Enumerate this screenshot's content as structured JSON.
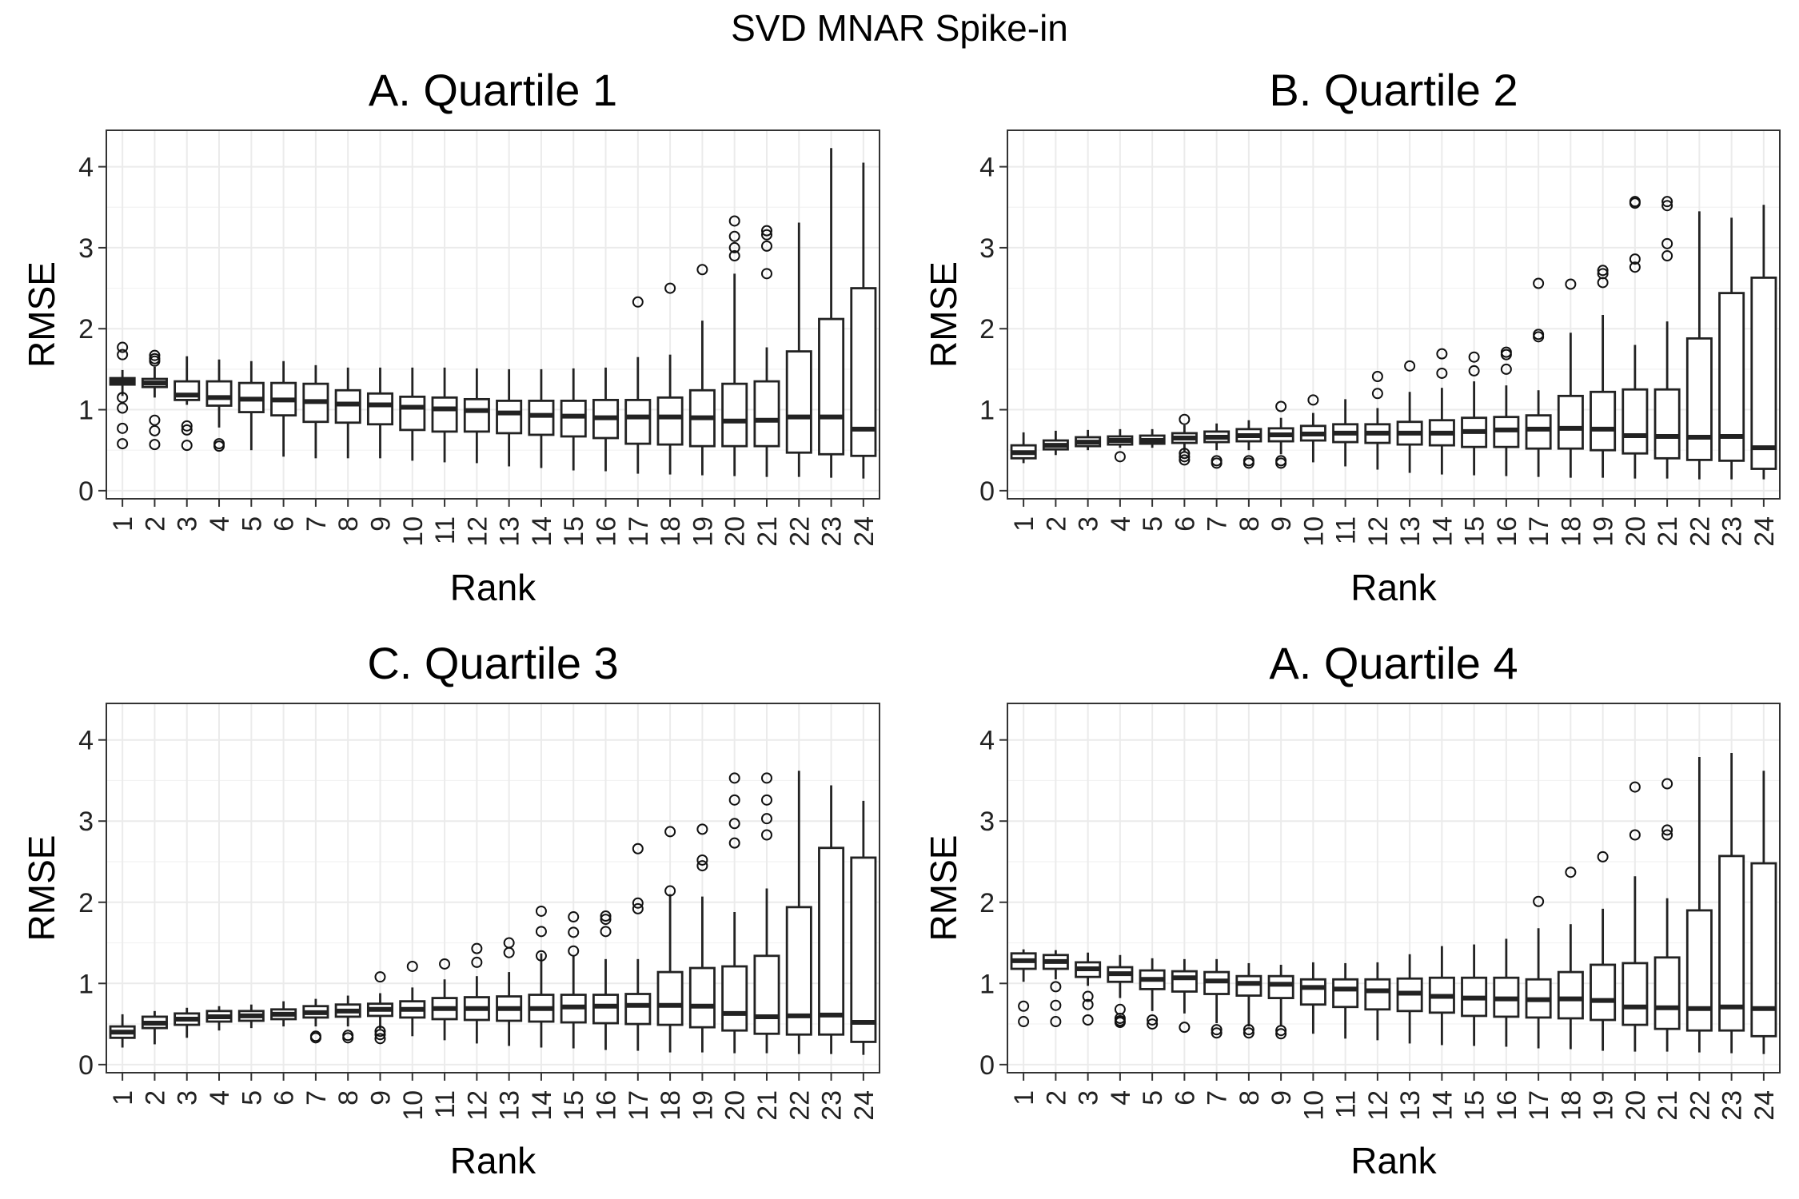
{
  "title": "SVD MNAR Spike-in",
  "chart_data": [
    {
      "type": "box",
      "title": "A. Quartile 1",
      "xlabel": "Rank",
      "ylabel": "RMSE",
      "ylim": [
        -0.1,
        4.45
      ],
      "yticks": [
        0,
        1,
        2,
        3,
        4
      ],
      "grid": true,
      "categories": [
        "1",
        "2",
        "3",
        "4",
        "5",
        "6",
        "7",
        "8",
        "9",
        "10",
        "11",
        "12",
        "13",
        "14",
        "15",
        "16",
        "17",
        "18",
        "19",
        "20",
        "21",
        "22",
        "23",
        "24"
      ],
      "boxes": [
        {
          "lo": 1.17,
          "q1": 1.31,
          "med": 1.35,
          "q3": 1.39,
          "hi": 1.49,
          "outliers": [
            1.77,
            1.68,
            1.15,
            1.02,
            0.77,
            0.58
          ]
        },
        {
          "lo": 1.15,
          "q1": 1.28,
          "med": 1.33,
          "q3": 1.38,
          "hi": 1.53,
          "outliers": [
            1.67,
            1.63,
            1.6,
            0.87,
            0.74,
            0.57
          ]
        },
        {
          "lo": 1.06,
          "q1": 1.12,
          "med": 1.18,
          "q3": 1.35,
          "hi": 1.66,
          "outliers": [
            0.8,
            0.75,
            0.56
          ]
        },
        {
          "lo": 0.78,
          "q1": 1.05,
          "med": 1.15,
          "q3": 1.35,
          "hi": 1.62,
          "outliers": [
            0.58,
            0.55
          ]
        },
        {
          "lo": 0.5,
          "q1": 0.97,
          "med": 1.13,
          "q3": 1.33,
          "hi": 1.6
        },
        {
          "lo": 0.42,
          "q1": 0.93,
          "med": 1.12,
          "q3": 1.33,
          "hi": 1.6
        },
        {
          "lo": 0.4,
          "q1": 0.85,
          "med": 1.1,
          "q3": 1.32,
          "hi": 1.55
        },
        {
          "lo": 0.4,
          "q1": 0.84,
          "med": 1.07,
          "q3": 1.24,
          "hi": 1.52
        },
        {
          "lo": 0.4,
          "q1": 0.82,
          "med": 1.06,
          "q3": 1.2,
          "hi": 1.52
        },
        {
          "lo": 0.37,
          "q1": 0.75,
          "med": 1.03,
          "q3": 1.16,
          "hi": 1.52
        },
        {
          "lo": 0.35,
          "q1": 0.73,
          "med": 1.01,
          "q3": 1.15,
          "hi": 1.52
        },
        {
          "lo": 0.34,
          "q1": 0.73,
          "med": 0.99,
          "q3": 1.13,
          "hi": 1.51
        },
        {
          "lo": 0.3,
          "q1": 0.71,
          "med": 0.96,
          "q3": 1.11,
          "hi": 1.5
        },
        {
          "lo": 0.28,
          "q1": 0.69,
          "med": 0.93,
          "q3": 1.11,
          "hi": 1.5
        },
        {
          "lo": 0.25,
          "q1": 0.67,
          "med": 0.92,
          "q3": 1.11,
          "hi": 1.51
        },
        {
          "lo": 0.24,
          "q1": 0.65,
          "med": 0.9,
          "q3": 1.12,
          "hi": 1.52
        },
        {
          "lo": 0.21,
          "q1": 0.58,
          "med": 0.91,
          "q3": 1.12,
          "hi": 1.65,
          "outliers": [
            2.33
          ]
        },
        {
          "lo": 0.2,
          "q1": 0.57,
          "med": 0.91,
          "q3": 1.15,
          "hi": 1.68,
          "outliers": [
            2.5
          ]
        },
        {
          "lo": 0.19,
          "q1": 0.55,
          "med": 0.9,
          "q3": 1.24,
          "hi": 2.1,
          "outliers": [
            2.73
          ]
        },
        {
          "lo": 0.18,
          "q1": 0.55,
          "med": 0.86,
          "q3": 1.32,
          "hi": 2.68,
          "outliers": [
            3.33,
            3.14,
            3.0,
            2.9
          ]
        },
        {
          "lo": 0.17,
          "q1": 0.55,
          "med": 0.87,
          "q3": 1.35,
          "hi": 1.77,
          "outliers": [
            3.21,
            3.16,
            3.02,
            2.68
          ]
        },
        {
          "lo": 0.17,
          "q1": 0.47,
          "med": 0.91,
          "q3": 1.72,
          "hi": 3.31
        },
        {
          "lo": 0.16,
          "q1": 0.45,
          "med": 0.91,
          "q3": 2.12,
          "hi": 4.23
        },
        {
          "lo": 0.15,
          "q1": 0.43,
          "med": 0.76,
          "q3": 2.5,
          "hi": 4.05
        }
      ]
    },
    {
      "type": "box",
      "title": "B. Quartile 2",
      "xlabel": "Rank",
      "ylabel": "RMSE",
      "ylim": [
        -0.1,
        4.45
      ],
      "yticks": [
        0,
        1,
        2,
        3,
        4
      ],
      "grid": true,
      "categories": [
        "1",
        "2",
        "3",
        "4",
        "5",
        "6",
        "7",
        "8",
        "9",
        "10",
        "11",
        "12",
        "13",
        "14",
        "15",
        "16",
        "17",
        "18",
        "19",
        "20",
        "21",
        "22",
        "23",
        "24"
      ],
      "boxes": [
        {
          "lo": 0.34,
          "q1": 0.4,
          "med": 0.47,
          "q3": 0.56,
          "hi": 0.72
        },
        {
          "lo": 0.44,
          "q1": 0.51,
          "med": 0.56,
          "q3": 0.62,
          "hi": 0.74
        },
        {
          "lo": 0.5,
          "q1": 0.55,
          "med": 0.6,
          "q3": 0.66,
          "hi": 0.75
        },
        {
          "lo": 0.53,
          "q1": 0.57,
          "med": 0.62,
          "q3": 0.67,
          "hi": 0.76,
          "outliers": [
            0.42
          ]
        },
        {
          "lo": 0.53,
          "q1": 0.58,
          "med": 0.62,
          "q3": 0.68,
          "hi": 0.76
        },
        {
          "lo": 0.48,
          "q1": 0.59,
          "med": 0.65,
          "q3": 0.71,
          "hi": 0.81,
          "outliers": [
            0.88,
            0.46,
            0.42,
            0.38
          ]
        },
        {
          "lo": 0.5,
          "q1": 0.6,
          "med": 0.66,
          "q3": 0.73,
          "hi": 0.83,
          "outliers": [
            0.37,
            0.34
          ]
        },
        {
          "lo": 0.5,
          "q1": 0.61,
          "med": 0.68,
          "q3": 0.76,
          "hi": 0.87,
          "outliers": [
            0.37,
            0.34
          ]
        },
        {
          "lo": 0.45,
          "q1": 0.61,
          "med": 0.69,
          "q3": 0.77,
          "hi": 0.9,
          "outliers": [
            1.04,
            0.37,
            0.34
          ]
        },
        {
          "lo": 0.35,
          "q1": 0.62,
          "med": 0.7,
          "q3": 0.8,
          "hi": 0.96,
          "outliers": [
            1.12
          ]
        },
        {
          "lo": 0.3,
          "q1": 0.6,
          "med": 0.71,
          "q3": 0.82,
          "hi": 1.13
        },
        {
          "lo": 0.26,
          "q1": 0.59,
          "med": 0.71,
          "q3": 0.82,
          "hi": 1.02,
          "outliers": [
            1.41,
            1.2
          ]
        },
        {
          "lo": 0.22,
          "q1": 0.57,
          "med": 0.71,
          "q3": 0.85,
          "hi": 1.22,
          "outliers": [
            1.54
          ]
        },
        {
          "lo": 0.2,
          "q1": 0.56,
          "med": 0.71,
          "q3": 0.87,
          "hi": 1.27,
          "outliers": [
            1.69,
            1.45
          ]
        },
        {
          "lo": 0.19,
          "q1": 0.54,
          "med": 0.73,
          "q3": 0.9,
          "hi": 1.35,
          "outliers": [
            1.65,
            1.48
          ]
        },
        {
          "lo": 0.18,
          "q1": 0.54,
          "med": 0.75,
          "q3": 0.91,
          "hi": 1.3,
          "outliers": [
            1.71,
            1.68,
            1.5
          ]
        },
        {
          "lo": 0.17,
          "q1": 0.52,
          "med": 0.76,
          "q3": 0.93,
          "hi": 1.24,
          "outliers": [
            2.56,
            1.93,
            1.9
          ]
        },
        {
          "lo": 0.16,
          "q1": 0.52,
          "med": 0.77,
          "q3": 1.17,
          "hi": 1.95,
          "outliers": [
            2.55
          ]
        },
        {
          "lo": 0.16,
          "q1": 0.5,
          "med": 0.76,
          "q3": 1.22,
          "hi": 2.17,
          "outliers": [
            2.72,
            2.68,
            2.57
          ]
        },
        {
          "lo": 0.15,
          "q1": 0.46,
          "med": 0.68,
          "q3": 1.25,
          "hi": 1.8,
          "outliers": [
            3.57,
            3.55,
            2.86,
            2.76
          ]
        },
        {
          "lo": 0.15,
          "q1": 0.4,
          "med": 0.67,
          "q3": 1.25,
          "hi": 2.09,
          "outliers": [
            3.57,
            3.52,
            3.05,
            2.9
          ]
        },
        {
          "lo": 0.14,
          "q1": 0.38,
          "med": 0.66,
          "q3": 1.88,
          "hi": 3.45
        },
        {
          "lo": 0.14,
          "q1": 0.37,
          "med": 0.67,
          "q3": 2.44,
          "hi": 3.37
        },
        {
          "lo": 0.14,
          "q1": 0.27,
          "med": 0.53,
          "q3": 2.63,
          "hi": 3.53
        }
      ]
    },
    {
      "type": "box",
      "title": "C. Quartile 3",
      "xlabel": "Rank",
      "ylabel": "RMSE",
      "ylim": [
        -0.1,
        4.45
      ],
      "yticks": [
        0,
        1,
        2,
        3,
        4
      ],
      "grid": true,
      "categories": [
        "1",
        "2",
        "3",
        "4",
        "5",
        "6",
        "7",
        "8",
        "9",
        "10",
        "11",
        "12",
        "13",
        "14",
        "15",
        "16",
        "17",
        "18",
        "19",
        "20",
        "21",
        "22",
        "23",
        "24"
      ],
      "boxes": [
        {
          "lo": 0.21,
          "q1": 0.33,
          "med": 0.4,
          "q3": 0.47,
          "hi": 0.62
        },
        {
          "lo": 0.25,
          "q1": 0.45,
          "med": 0.51,
          "q3": 0.59,
          "hi": 0.66
        },
        {
          "lo": 0.33,
          "q1": 0.49,
          "med": 0.56,
          "q3": 0.63,
          "hi": 0.7
        },
        {
          "lo": 0.42,
          "q1": 0.53,
          "med": 0.59,
          "q3": 0.66,
          "hi": 0.72
        },
        {
          "lo": 0.45,
          "q1": 0.54,
          "med": 0.6,
          "q3": 0.66,
          "hi": 0.74
        },
        {
          "lo": 0.47,
          "q1": 0.56,
          "med": 0.62,
          "q3": 0.68,
          "hi": 0.78
        },
        {
          "lo": 0.47,
          "q1": 0.58,
          "med": 0.64,
          "q3": 0.72,
          "hi": 0.81,
          "outliers": [
            0.35,
            0.33
          ]
        },
        {
          "lo": 0.47,
          "q1": 0.59,
          "med": 0.66,
          "q3": 0.74,
          "hi": 0.85,
          "outliers": [
            0.36,
            0.33
          ]
        },
        {
          "lo": 0.44,
          "q1": 0.6,
          "med": 0.68,
          "q3": 0.75,
          "hi": 0.88,
          "outliers": [
            1.08,
            0.41,
            0.37,
            0.32
          ]
        },
        {
          "lo": 0.35,
          "q1": 0.58,
          "med": 0.68,
          "q3": 0.78,
          "hi": 0.95,
          "outliers": [
            1.21
          ]
        },
        {
          "lo": 0.3,
          "q1": 0.56,
          "med": 0.69,
          "q3": 0.82,
          "hi": 1.05,
          "outliers": [
            1.24
          ]
        },
        {
          "lo": 0.26,
          "q1": 0.55,
          "med": 0.69,
          "q3": 0.83,
          "hi": 1.09,
          "outliers": [
            1.43,
            1.26
          ]
        },
        {
          "lo": 0.23,
          "q1": 0.54,
          "med": 0.69,
          "q3": 0.84,
          "hi": 1.14,
          "outliers": [
            1.5,
            1.38
          ]
        },
        {
          "lo": 0.21,
          "q1": 0.53,
          "med": 0.69,
          "q3": 0.86,
          "hi": 1.37,
          "outliers": [
            1.89,
            1.64,
            1.34
          ]
        },
        {
          "lo": 0.2,
          "q1": 0.52,
          "med": 0.71,
          "q3": 0.86,
          "hi": 1.34,
          "outliers": [
            1.82,
            1.63,
            1.4
          ]
        },
        {
          "lo": 0.18,
          "q1": 0.51,
          "med": 0.72,
          "q3": 0.86,
          "hi": 1.3,
          "outliers": [
            1.83,
            1.79,
            1.64
          ]
        },
        {
          "lo": 0.17,
          "q1": 0.5,
          "med": 0.73,
          "q3": 0.87,
          "hi": 1.3,
          "outliers": [
            2.66,
            1.99,
            1.92
          ]
        },
        {
          "lo": 0.15,
          "q1": 0.49,
          "med": 0.73,
          "q3": 1.14,
          "hi": 2.1,
          "outliers": [
            2.87,
            2.14
          ]
        },
        {
          "lo": 0.15,
          "q1": 0.46,
          "med": 0.72,
          "q3": 1.19,
          "hi": 2.07,
          "outliers": [
            2.9,
            2.52,
            2.45
          ]
        },
        {
          "lo": 0.14,
          "q1": 0.42,
          "med": 0.63,
          "q3": 1.21,
          "hi": 1.88,
          "outliers": [
            3.53,
            3.26,
            2.97,
            2.73
          ]
        },
        {
          "lo": 0.14,
          "q1": 0.38,
          "med": 0.59,
          "q3": 1.34,
          "hi": 2.17,
          "outliers": [
            3.53,
            3.26,
            3.03,
            2.83
          ]
        },
        {
          "lo": 0.13,
          "q1": 0.37,
          "med": 0.6,
          "q3": 1.94,
          "hi": 3.62
        },
        {
          "lo": 0.13,
          "q1": 0.37,
          "med": 0.61,
          "q3": 2.67,
          "hi": 3.44
        },
        {
          "lo": 0.12,
          "q1": 0.28,
          "med": 0.52,
          "q3": 2.55,
          "hi": 3.25
        }
      ]
    },
    {
      "type": "box",
      "title": "A. Quartile 4",
      "xlabel": "Rank",
      "ylabel": "RMSE",
      "ylim": [
        -0.1,
        4.45
      ],
      "yticks": [
        0,
        1,
        2,
        3,
        4
      ],
      "grid": true,
      "categories": [
        "1",
        "2",
        "3",
        "4",
        "5",
        "6",
        "7",
        "8",
        "9",
        "10",
        "11",
        "12",
        "13",
        "14",
        "15",
        "16",
        "17",
        "18",
        "19",
        "20",
        "21",
        "22",
        "23",
        "24"
      ],
      "boxes": [
        {
          "lo": 1.02,
          "q1": 1.18,
          "med": 1.28,
          "q3": 1.37,
          "hi": 1.42,
          "outliers": [
            0.72,
            0.53
          ]
        },
        {
          "lo": 1.05,
          "q1": 1.18,
          "med": 1.27,
          "q3": 1.35,
          "hi": 1.41,
          "outliers": [
            0.96,
            0.73,
            0.53
          ]
        },
        {
          "lo": 0.97,
          "q1": 1.08,
          "med": 1.18,
          "q3": 1.26,
          "hi": 1.38,
          "outliers": [
            0.84,
            0.74,
            0.55
          ]
        },
        {
          "lo": 0.82,
          "q1": 1.02,
          "med": 1.12,
          "q3": 1.2,
          "hi": 1.35,
          "outliers": [
            0.68,
            0.57,
            0.54,
            0.52
          ]
        },
        {
          "lo": 0.66,
          "q1": 0.93,
          "med": 1.05,
          "q3": 1.16,
          "hi": 1.31,
          "outliers": [
            0.55,
            0.5
          ]
        },
        {
          "lo": 0.63,
          "q1": 0.9,
          "med": 1.07,
          "q3": 1.15,
          "hi": 1.3,
          "outliers": [
            0.46
          ]
        },
        {
          "lo": 0.51,
          "q1": 0.87,
          "med": 1.03,
          "q3": 1.14,
          "hi": 1.3,
          "outliers": [
            0.43,
            0.39
          ]
        },
        {
          "lo": 0.47,
          "q1": 0.85,
          "med": 1.0,
          "q3": 1.09,
          "hi": 1.25,
          "outliers": [
            0.43,
            0.39
          ]
        },
        {
          "lo": 0.47,
          "q1": 0.82,
          "med": 0.99,
          "q3": 1.09,
          "hi": 1.23,
          "outliers": [
            0.42,
            0.38
          ]
        },
        {
          "lo": 0.38,
          "q1": 0.74,
          "med": 0.95,
          "q3": 1.05,
          "hi": 1.26
        },
        {
          "lo": 0.32,
          "q1": 0.71,
          "med": 0.93,
          "q3": 1.05,
          "hi": 1.25
        },
        {
          "lo": 0.3,
          "q1": 0.68,
          "med": 0.91,
          "q3": 1.05,
          "hi": 1.26
        },
        {
          "lo": 0.26,
          "q1": 0.66,
          "med": 0.88,
          "q3": 1.06,
          "hi": 1.36
        },
        {
          "lo": 0.24,
          "q1": 0.64,
          "med": 0.84,
          "q3": 1.07,
          "hi": 1.46
        },
        {
          "lo": 0.23,
          "q1": 0.6,
          "med": 0.82,
          "q3": 1.07,
          "hi": 1.48
        },
        {
          "lo": 0.22,
          "q1": 0.59,
          "med": 0.81,
          "q3": 1.07,
          "hi": 1.55
        },
        {
          "lo": 0.2,
          "q1": 0.58,
          "med": 0.8,
          "q3": 1.05,
          "hi": 1.68,
          "outliers": [
            2.01
          ]
        },
        {
          "lo": 0.19,
          "q1": 0.57,
          "med": 0.81,
          "q3": 1.14,
          "hi": 1.73,
          "outliers": [
            2.37
          ]
        },
        {
          "lo": 0.17,
          "q1": 0.55,
          "med": 0.79,
          "q3": 1.23,
          "hi": 1.92,
          "outliers": [
            2.56
          ]
        },
        {
          "lo": 0.16,
          "q1": 0.49,
          "med": 0.71,
          "q3": 1.25,
          "hi": 2.32,
          "outliers": [
            3.42,
            2.83
          ]
        },
        {
          "lo": 0.16,
          "q1": 0.44,
          "med": 0.7,
          "q3": 1.32,
          "hi": 2.05,
          "outliers": [
            3.46,
            2.89,
            2.83
          ]
        },
        {
          "lo": 0.15,
          "q1": 0.42,
          "med": 0.69,
          "q3": 1.9,
          "hi": 3.79
        },
        {
          "lo": 0.14,
          "q1": 0.42,
          "med": 0.71,
          "q3": 2.57,
          "hi": 3.84
        },
        {
          "lo": 0.13,
          "q1": 0.35,
          "med": 0.69,
          "q3": 2.48,
          "hi": 3.62
        }
      ]
    }
  ]
}
